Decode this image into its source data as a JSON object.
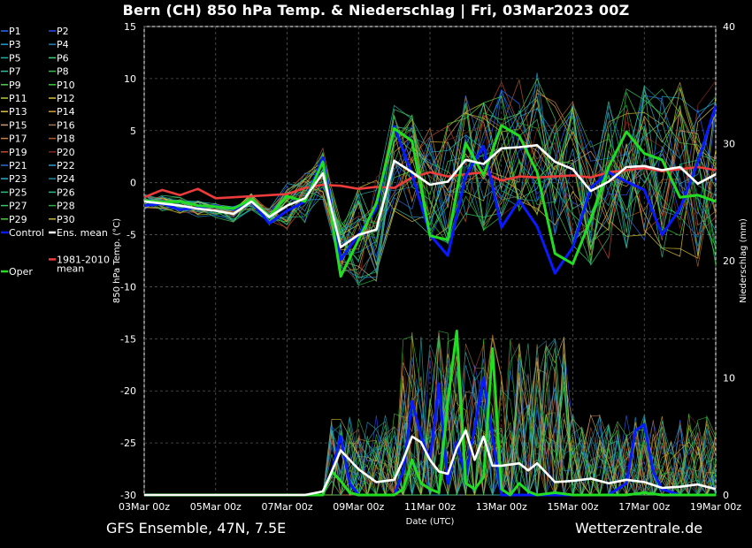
{
  "header": {
    "title": "Bern  (CH)  850 hPa Temp. & Niederschlag | Fri, 03Mar2023 00Z"
  },
  "footer": {
    "model": "GFS Ensemble, 47N, 7.5E",
    "source": "Wetterzentrale.de"
  },
  "chart_data": {
    "type": "line",
    "title": "Bern  (CH)  850 hPa Temp. & Niederschlag | Fri, 03Mar2023 00Z",
    "xlabel": "Date (UTC)",
    "ylabel_left": "850 hPa Temp. (°C)",
    "ylabel_right": "Niederschlag (mm)",
    "x_range_days": [
      0,
      16
    ],
    "x_ticks": [
      "03Mar 00z",
      "05Mar 00z",
      "07Mar 00z",
      "09Mar 00z",
      "11Mar 00z",
      "13Mar 00z",
      "15Mar 00z",
      "17Mar 00z",
      "19Mar 00z"
    ],
    "ylim_left": [
      -30,
      15
    ],
    "y_ticks_left": [
      15,
      10,
      5,
      0,
      -5,
      -10,
      -15,
      -20,
      -25,
      -30
    ],
    "ylim_right": [
      0,
      40
    ],
    "y_ticks_right": [
      40,
      30,
      20,
      10,
      0
    ],
    "grid": true,
    "legend_position": "left-outside",
    "legend": [
      "P1",
      "P2",
      "P3",
      "P4",
      "P5",
      "P6",
      "P7",
      "P8",
      "P9",
      "P10",
      "P11",
      "P12",
      "P13",
      "P14",
      "P15",
      "P16",
      "P17",
      "P18",
      "P19",
      "P20",
      "P21",
      "P22",
      "P23",
      "P24",
      "P25",
      "P26",
      "P27",
      "P28",
      "P29",
      "P30",
      "Control",
      "Ens. mean",
      "1981-2010 mean",
      "Oper"
    ],
    "legend_colors": {
      "P1": "#1e6cff",
      "P2": "#2c4cff",
      "P3": "#1a9fd0",
      "P4": "#1f7fb8",
      "P5": "#19b3a8",
      "P6": "#3bd07a",
      "P7": "#2fc0a0",
      "P8": "#39b84c",
      "P9": "#4ad04a",
      "P10": "#2ecc2e",
      "P11": "#b8c832",
      "P12": "#d8c030",
      "P13": "#e0c040",
      "P14": "#d0a030",
      "P15": "#d09a70",
      "P16": "#a07050",
      "P17": "#d08040",
      "P18": "#b05a2a",
      "P19": "#c04a2a",
      "P20": "#8a2418",
      "P21": "#2a6ad8",
      "P22": "#2a9ad8",
      "P23": "#2aaac8",
      "P24": "#1a8aa0",
      "P25": "#2ac080",
      "P26": "#2ab888",
      "P27": "#38c860",
      "P28": "#2ab040",
      "P29": "#48d038",
      "P30": "#c8b830",
      "Control": "#0a1aff",
      "Ens. mean": "#ffffff",
      "1981-2010 mean": "#ee3b3b",
      "Oper": "#22dd22"
    },
    "temperature_series": [
      {
        "name": "Ens. mean",
        "days": [
          0,
          0.5,
          1,
          1.5,
          2,
          2.5,
          3,
          3.5,
          4,
          4.5,
          5,
          5.5,
          6,
          6.5,
          7,
          7.5,
          8,
          8.5,
          9,
          9.5,
          10,
          10.5,
          11,
          11.5,
          12,
          12.5,
          13,
          13.5,
          14,
          14.5,
          15,
          15.5,
          16
        ],
        "values": [
          -1.8,
          -2,
          -2.2,
          -2.5,
          -2.7,
          -3,
          -1.8,
          -3.3,
          -2.2,
          -1.5,
          0.9,
          -6.2,
          -5,
          -4.5,
          2.1,
          1,
          -0.2,
          0.1,
          2.2,
          1.8,
          3.3,
          3.4,
          3.6,
          2,
          1.3,
          -0.8,
          0.1,
          1.5,
          1.6,
          1.2,
          1.5,
          -0.1,
          0.8
        ]
      },
      {
        "name": "1981-2010 mean",
        "days": [
          0,
          0.5,
          1,
          1.5,
          2,
          2.5,
          3,
          3.5,
          4,
          4.5,
          5,
          5.5,
          6,
          6.5,
          7,
          7.5,
          8,
          8.5,
          9,
          9.5,
          10,
          10.5,
          11,
          11.5,
          12,
          12.5,
          13,
          13.5,
          14,
          14.5,
          15,
          15.5,
          16
        ],
        "values": [
          -1.4,
          -0.7,
          -1.2,
          -0.6,
          -1.5,
          -1.4,
          -1.3,
          -1.2,
          -1.1,
          -0.5,
          -0.2,
          -0.3,
          -0.6,
          -0.4,
          -0.5,
          0.5,
          1,
          0.6,
          0.8,
          1,
          0.2,
          0.6,
          0.5,
          0.6,
          0.7,
          0.5,
          1,
          1.2,
          1.4,
          1.1,
          1.3,
          1.5,
          1.2
        ]
      },
      {
        "name": "Control",
        "days": [
          0,
          0.5,
          1,
          1.5,
          2,
          2.5,
          3,
          3.5,
          4,
          4.5,
          5,
          5.5,
          6,
          6.5,
          7,
          7.5,
          8,
          8.5,
          9,
          9.5,
          10,
          10.5,
          11,
          11.5,
          12,
          12.5,
          13,
          13.5,
          14,
          14.5,
          15,
          15.5,
          16
        ],
        "values": [
          -2.2,
          -2,
          -2.6,
          -2.4,
          -2.2,
          -2.6,
          -1.8,
          -3.9,
          -2.7,
          -1.8,
          2.4,
          -7.4,
          -5,
          -2.5,
          5.4,
          0.8,
          -5,
          -7,
          0.7,
          3.5,
          -4.3,
          -1.7,
          -4.2,
          -8.7,
          -6.2,
          -0.5,
          1,
          0.1,
          -0.7,
          -5,
          -2.5,
          2,
          7.4
        ]
      },
      {
        "name": "Oper",
        "days": [
          0,
          0.5,
          1,
          1.5,
          2,
          2.5,
          3,
          3.5,
          4,
          4.5,
          5,
          5.5,
          6,
          6.5,
          7,
          7.5,
          8,
          8.5,
          9,
          9.5,
          10,
          10.5,
          11,
          11.5,
          12,
          12.5,
          13,
          13.5,
          14,
          14.5,
          15,
          15.5,
          16
        ],
        "values": [
          -1.7,
          -1.9,
          -1.8,
          -2.2,
          -2.3,
          -2.5,
          -1.6,
          -3.2,
          -1.3,
          -1.8,
          2,
          -9,
          -5.5,
          -2,
          5.2,
          4,
          -5.1,
          -5.5,
          3.8,
          0.7,
          5.5,
          4.5,
          1,
          -6.8,
          -7.8,
          -3.5,
          1.5,
          4.9,
          2.8,
          2.2,
          -1.4,
          -1.2,
          -1.8
        ]
      }
    ],
    "precip_series": [
      {
        "name": "Ens. mean",
        "days": [
          0,
          1,
          2,
          3,
          4,
          4.5,
          5,
          5.25,
          5.5,
          6,
          6.5,
          7,
          7.25,
          7.5,
          7.75,
          8,
          8.25,
          8.5,
          8.75,
          9,
          9.25,
          9.5,
          9.75,
          10,
          10.5,
          10.75,
          11,
          11.5,
          12,
          12.5,
          13,
          13.5,
          14,
          14.5,
          15,
          15.5,
          16
        ],
        "values": [
          0,
          0,
          0,
          0,
          0,
          0,
          0.3,
          2,
          3.8,
          2.2,
          1.1,
          1.3,
          3,
          5,
          4.5,
          3,
          2,
          1.8,
          4,
          5.5,
          3,
          5,
          2.5,
          2.5,
          2.7,
          2.1,
          2.7,
          1.1,
          1.2,
          1.4,
          1,
          1.3,
          1.1,
          0.6,
          0.7,
          0.9,
          0.5
        ]
      },
      {
        "name": "Control",
        "days": [
          0,
          1,
          2,
          3,
          4,
          4.5,
          5,
          5.25,
          5.5,
          5.75,
          6,
          6.5,
          7,
          7.25,
          7.5,
          7.75,
          8,
          8.25,
          8.5,
          8.75,
          9,
          9.5,
          10,
          10.5,
          11,
          12,
          13,
          13.5,
          13.75,
          14,
          14.25,
          14.5,
          15,
          16
        ],
        "values": [
          0,
          0,
          0,
          0,
          0,
          0,
          0,
          2,
          5,
          1,
          0,
          0,
          0,
          2,
          8,
          5,
          3,
          9.5,
          1,
          4.5,
          1.5,
          10,
          0,
          0,
          0,
          0,
          0,
          1,
          5.5,
          6,
          2,
          0.5,
          0,
          0
        ]
      },
      {
        "name": "Oper",
        "days": [
          0,
          1,
          2,
          3,
          4,
          4.5,
          5,
          5.25,
          5.5,
          5.75,
          6,
          6.5,
          7,
          7.25,
          7.5,
          7.75,
          8,
          8.25,
          8.5,
          8.75,
          9,
          9.25,
          9.5,
          9.75,
          10,
          10.25,
          10.5,
          10.75,
          11,
          11.5,
          12,
          12.5,
          13,
          13.5,
          14,
          14.5,
          15,
          16
        ],
        "values": [
          0,
          0,
          0,
          0,
          0,
          0,
          0,
          2,
          1.2,
          0.2,
          0,
          0,
          0,
          0.5,
          3,
          1,
          0.5,
          0.2,
          8,
          14,
          1,
          0.5,
          1.5,
          12.5,
          0.5,
          0,
          1,
          0.3,
          0,
          0.2,
          0,
          0,
          0,
          0,
          0.2,
          0,
          0,
          0
        ]
      }
    ]
  }
}
